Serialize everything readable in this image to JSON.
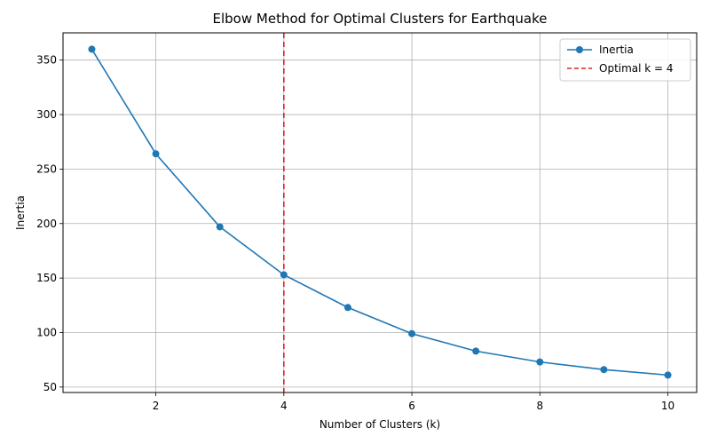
{
  "chart_data": {
    "type": "line",
    "title": "Elbow Method for Optimal Clusters for Earthquake",
    "xlabel": "Number of Clusters (k)",
    "ylabel": "Inertia",
    "xlim": [
      0.55,
      10.45
    ],
    "ylim": [
      45,
      375
    ],
    "xticks": [
      2,
      4,
      6,
      8,
      10
    ],
    "yticks": [
      50,
      100,
      150,
      200,
      250,
      300,
      350
    ],
    "grid": true,
    "legend_position": "top-right",
    "series": [
      {
        "name": "Inertia",
        "color": "#1f77b4",
        "marker": "circle",
        "x": [
          1,
          2,
          3,
          4,
          5,
          6,
          7,
          8,
          9,
          10
        ],
        "y": [
          360,
          264,
          197,
          153,
          123,
          99,
          83,
          73,
          66,
          61
        ]
      }
    ],
    "reference_line": {
      "name": "Optimal k = 4",
      "orientation": "vertical",
      "x": 4,
      "color": "#d62728",
      "style": "dashed"
    }
  }
}
